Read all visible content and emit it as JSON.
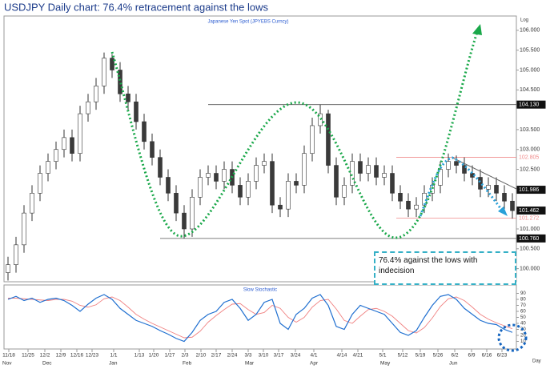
{
  "chart_data": [
    {
      "type": "candlestick",
      "title": "USDJPY Daily chart: 76.4% retracement against the lows",
      "subtitle": "Japanese Yen Spot (JPYEBS Curncy)",
      "scale_label": "Log",
      "axis_end_label": "Day",
      "annotation": "76.4% against the lows with indecision",
      "up_color": "#ffffff",
      "down_color": "#3a3a3a",
      "open": [
        99.9,
        100.1,
        100.6,
        101.4,
        101.9,
        102.4,
        102.7,
        103.0,
        103.3,
        102.9,
        103.9,
        104.2,
        104.6,
        105.3,
        105.0,
        104.4,
        104.2,
        103.7,
        103.2,
        102.8,
        102.3,
        101.9,
        101.4,
        101.0,
        101.8,
        102.3,
        102.4,
        102.2,
        102.5,
        102.1,
        101.8,
        102.2,
        102.6,
        102.7,
        101.6,
        101.5,
        102.2,
        102.1,
        102.9,
        103.6,
        103.9,
        102.6,
        101.8,
        102.1,
        102.7,
        102.4,
        102.6,
        102.3,
        102.4,
        101.9,
        101.7,
        101.5,
        101.6,
        101.9,
        102.1,
        102.5,
        102.7,
        102.6,
        102.4,
        102.3,
        102.0,
        102.1,
        101.9,
        101.7
      ],
      "high": [
        100.3,
        100.8,
        101.6,
        102.1,
        102.6,
        102.9,
        103.2,
        103.5,
        103.5,
        104.1,
        104.4,
        104.8,
        105.44,
        105.4,
        105.2,
        104.6,
        104.4,
        103.9,
        103.4,
        103.0,
        102.5,
        102.1,
        101.6,
        102.0,
        102.5,
        102.6,
        102.6,
        102.7,
        102.7,
        102.3,
        102.4,
        102.8,
        102.9,
        102.9,
        101.8,
        102.4,
        102.4,
        103.1,
        103.8,
        104.13,
        104.0,
        102.8,
        102.3,
        102.9,
        102.9,
        102.8,
        102.8,
        102.6,
        102.6,
        102.1,
        101.9,
        101.8,
        102.1,
        102.3,
        102.7,
        102.9,
        102.85,
        102.8,
        102.6,
        102.5,
        102.3,
        102.3,
        102.1,
        101.9
      ],
      "low": [
        99.7,
        99.9,
        100.4,
        101.2,
        101.7,
        102.2,
        102.5,
        102.8,
        102.7,
        102.7,
        103.7,
        104.0,
        104.4,
        104.8,
        104.2,
        104.0,
        103.5,
        103.0,
        102.6,
        102.1,
        101.7,
        101.2,
        100.76,
        100.8,
        101.6,
        102.1,
        102.0,
        102.0,
        101.9,
        101.6,
        101.6,
        102.0,
        102.4,
        101.4,
        101.3,
        101.3,
        101.9,
        101.9,
        102.7,
        103.4,
        102.4,
        101.6,
        101.6,
        101.9,
        102.2,
        102.2,
        102.1,
        102.1,
        101.7,
        101.5,
        101.3,
        101.3,
        101.4,
        101.7,
        101.9,
        102.3,
        102.4,
        102.2,
        102.1,
        101.8,
        101.8,
        101.7,
        101.5,
        101.26
      ],
      "close": [
        100.1,
        100.6,
        101.4,
        101.9,
        102.4,
        102.7,
        103.0,
        103.3,
        102.9,
        103.9,
        104.2,
        104.6,
        105.3,
        105.0,
        104.4,
        104.2,
        103.7,
        103.2,
        102.8,
        102.3,
        101.9,
        101.4,
        101.0,
        101.8,
        102.3,
        102.4,
        102.2,
        102.5,
        102.1,
        101.8,
        102.2,
        102.6,
        102.7,
        101.6,
        101.5,
        102.2,
        102.1,
        102.9,
        103.6,
        103.9,
        102.6,
        101.8,
        102.1,
        102.7,
        102.4,
        102.6,
        102.3,
        102.4,
        101.9,
        101.7,
        101.5,
        101.6,
        101.9,
        102.1,
        102.5,
        102.7,
        102.6,
        102.4,
        102.3,
        102.0,
        102.1,
        101.9,
        101.7,
        101.46
      ],
      "xlim": [
        -0.5,
        63.5
      ],
      "ylim": [
        99.67,
        106.36
      ],
      "yticks": [
        {
          "value": 100,
          "label": "100.000"
        },
        {
          "value": 100.5,
          "label": "100.500"
        },
        {
          "value": 101,
          "label": "101.000"
        },
        {
          "value": 102.5,
          "label": "102.500"
        },
        {
          "value": 103,
          "label": "103.000"
        },
        {
          "value": 103.5,
          "label": "103.500"
        },
        {
          "value": 104.5,
          "label": "104.500"
        },
        {
          "value": 105,
          "label": "105.000"
        },
        {
          "value": 105.5,
          "label": "105.500"
        },
        {
          "value": 106,
          "label": "106.000"
        }
      ],
      "levels": [
        {
          "value": 104.13,
          "label": "104.130",
          "color": "#000000"
        },
        {
          "value": 102.805,
          "label": "102.805",
          "color": "#f08a8a"
        },
        {
          "value": 101.986,
          "label": "101.986",
          "color": "#000000"
        },
        {
          "value": 101.462,
          "label": "101.462",
          "color": "#000000"
        },
        {
          "value": 101.272,
          "label": "101.272",
          "color": "#f08a8a"
        },
        {
          "value": 100.76,
          "label": "100.760",
          "color": "#000000"
        }
      ],
      "xticks": [
        {
          "value": 0.1,
          "label": "11/18"
        },
        {
          "value": 2.5,
          "label": "11/25"
        },
        {
          "value": 4.6,
          "label": "12/2"
        },
        {
          "value": 6.6,
          "label": "12/9"
        },
        {
          "value": 8.6,
          "label": "12/16"
        },
        {
          "value": 10.5,
          "label": "12/23"
        },
        {
          "value": 13.2,
          "label": "1/1"
        },
        {
          "value": 16.4,
          "label": "1/13"
        },
        {
          "value": 18.2,
          "label": "1/20"
        },
        {
          "value": 20.2,
          "label": "1/27"
        },
        {
          "value": 22.1,
          "label": "2/3"
        },
        {
          "value": 24.1,
          "label": "2/10"
        },
        {
          "value": 26.0,
          "label": "2/17"
        },
        {
          "value": 28.0,
          "label": "2/24"
        },
        {
          "value": 30.0,
          "label": "3/3"
        },
        {
          "value": 31.9,
          "label": "3/10"
        },
        {
          "value": 33.8,
          "label": "3/17"
        },
        {
          "value": 35.9,
          "label": "3/24"
        },
        {
          "value": 38.2,
          "label": "4/1"
        },
        {
          "value": 41.7,
          "label": "4/14"
        },
        {
          "value": 43.7,
          "label": "4/21"
        },
        {
          "value": 46.8,
          "label": "5/1"
        },
        {
          "value": 49.3,
          "label": "5/12"
        },
        {
          "value": 51.5,
          "label": "5/19"
        },
        {
          "value": 53.7,
          "label": "5/26"
        },
        {
          "value": 55.8,
          "label": "6/2"
        },
        {
          "value": 57.9,
          "label": "6/9"
        },
        {
          "value": 59.8,
          "label": "6/16"
        },
        {
          "value": 61.7,
          "label": "6/23"
        }
      ],
      "month_ticks": [
        {
          "value": -0.8,
          "label": "Nov"
        },
        {
          "value": 4.3,
          "label": "Dec"
        },
        {
          "value": 12.6,
          "label": "Jan"
        },
        {
          "value": 21.8,
          "label": "Feb"
        },
        {
          "value": 29.6,
          "label": "Mar"
        },
        {
          "value": 37.7,
          "label": "Apr"
        },
        {
          "value": 46.5,
          "label": "May"
        },
        {
          "value": 55.1,
          "label": "Jun"
        }
      ]
    },
    {
      "type": "line",
      "title": "Slow Stochastic",
      "xlim": [
        -0.5,
        63.5
      ],
      "ylim": [
        0,
        100
      ],
      "yticks": [
        10,
        20,
        30,
        40,
        50,
        60,
        70,
        80,
        90
      ],
      "series": [
        {
          "color": "#1f6fd0",
          "values": [
            80,
            85,
            78,
            82,
            75,
            80,
            82,
            78,
            70,
            60,
            72,
            82,
            88,
            80,
            65,
            55,
            45,
            40,
            35,
            28,
            22,
            15,
            10,
            25,
            45,
            55,
            60,
            75,
            80,
            65,
            45,
            55,
            75,
            80,
            40,
            30,
            55,
            65,
            82,
            88,
            70,
            35,
            30,
            55,
            70,
            65,
            60,
            55,
            40,
            25,
            20,
            28,
            50,
            70,
            85,
            88,
            80,
            65,
            55,
            45,
            40,
            38,
            30,
            25
          ]
        },
        {
          "color": "#f08080",
          "values": [
            82,
            82,
            81,
            80,
            79,
            78,
            80,
            80,
            77,
            70,
            67,
            71,
            81,
            84,
            78,
            67,
            55,
            47,
            40,
            34,
            28,
            22,
            16,
            17,
            27,
            42,
            53,
            63,
            72,
            73,
            63,
            55,
            58,
            70,
            65,
            50,
            42,
            50,
            67,
            78,
            80,
            64,
            45,
            40,
            52,
            63,
            65,
            60,
            52,
            40,
            28,
            24,
            33,
            49,
            68,
            81,
            84,
            78,
            67,
            55,
            47,
            41,
            36,
            31
          ]
        }
      ]
    }
  ]
}
